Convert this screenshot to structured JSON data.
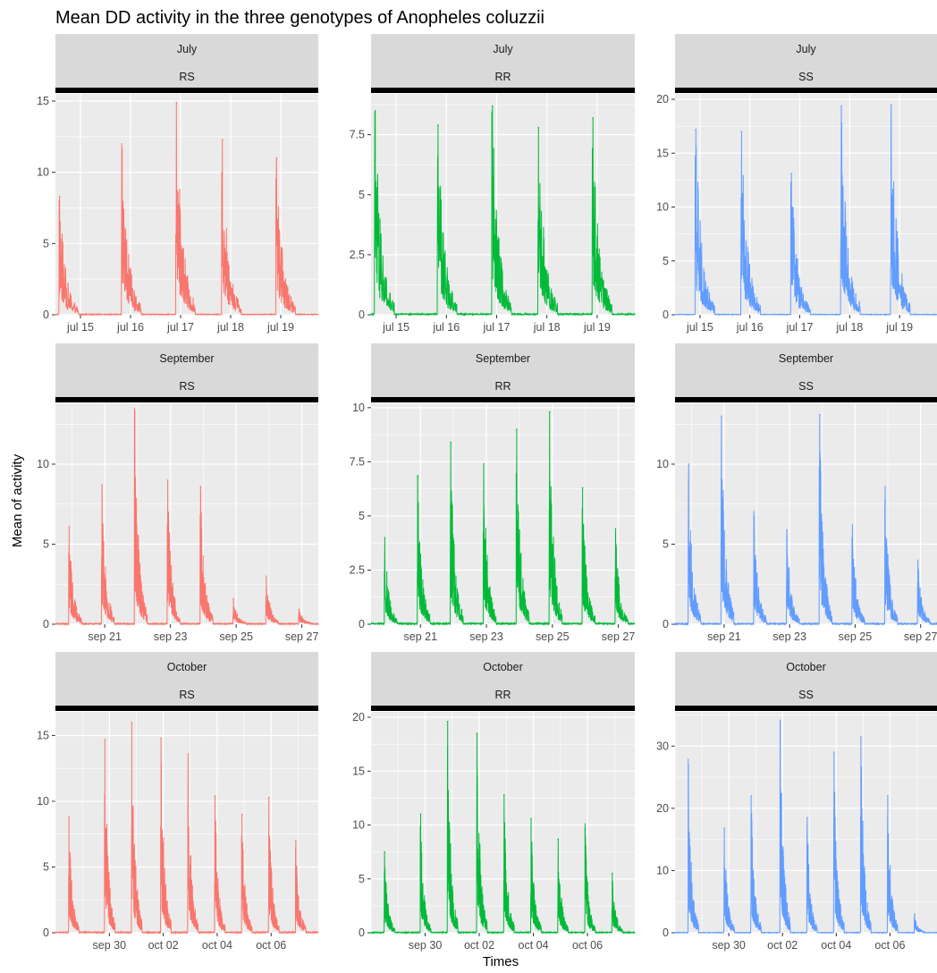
{
  "title": "Mean DD activity in the three genotypes of Anopheles coluzzii",
  "xlabel": "Times",
  "ylabel": "Mean of activity",
  "colors": {
    "RS": "#F8766D",
    "RR": "#00BA38",
    "SS": "#619CFF",
    "panel_bg": "#EBEBEB",
    "strip_bg": "#D9D9D9",
    "grid": "#FFFFFF"
  },
  "chart_data": [
    {
      "type": "line",
      "month": "July",
      "genotype": "RS",
      "ylim": [
        0,
        15.5
      ],
      "yticks": [
        0,
        5,
        10,
        15
      ],
      "x_range": [
        "2018-07-14T12:00",
        "2018-07-19T18:00"
      ],
      "x_ticks": [
        {
          "at": "2018-07-15",
          "label": "jul 15"
        },
        {
          "at": "2018-07-16",
          "label": "jul 16"
        },
        {
          "at": "2018-07-17",
          "label": "jul 17"
        },
        {
          "at": "2018-07-18",
          "label": "jul 18"
        },
        {
          "at": "2018-07-19",
          "label": "jul 19"
        }
      ],
      "peaks": [
        {
          "t": "2018-07-14T14:00",
          "v": 8.3
        },
        {
          "t": "2018-07-15T20:00",
          "v": 11.6
        },
        {
          "t": "2018-07-16T22:00",
          "v": 14.9
        },
        {
          "t": "2018-07-17T20:00",
          "v": 12.3
        },
        {
          "t": "2018-07-18T22:00",
          "v": 11.0
        }
      ]
    },
    {
      "type": "line",
      "month": "July",
      "genotype": "RR",
      "ylim": [
        0,
        9.2
      ],
      "yticks": [
        0,
        2.5,
        5,
        7.5
      ],
      "x_range": [
        "2018-07-14T12:00",
        "2018-07-19T18:00"
      ],
      "x_ticks": [
        {
          "at": "2018-07-15",
          "label": "jul 15"
        },
        {
          "at": "2018-07-16",
          "label": "jul 16"
        },
        {
          "at": "2018-07-17",
          "label": "jul 17"
        },
        {
          "at": "2018-07-18",
          "label": "jul 18"
        },
        {
          "at": "2018-07-19",
          "label": "jul 19"
        }
      ],
      "peaks": [
        {
          "t": "2018-07-14T14:00",
          "v": 8.5
        },
        {
          "t": "2018-07-15T20:00",
          "v": 7.9
        },
        {
          "t": "2018-07-16T22:00",
          "v": 8.7
        },
        {
          "t": "2018-07-17T20:00",
          "v": 7.8
        },
        {
          "t": "2018-07-18T22:00",
          "v": 8.2
        }
      ]
    },
    {
      "type": "line",
      "month": "July",
      "genotype": "SS",
      "ylim": [
        0,
        20.5
      ],
      "yticks": [
        0,
        5,
        10,
        15,
        20
      ],
      "x_range": [
        "2018-07-14T12:00",
        "2018-07-19T18:00"
      ],
      "x_ticks": [
        {
          "at": "2018-07-15",
          "label": "jul 15"
        },
        {
          "at": "2018-07-16",
          "label": "jul 16"
        },
        {
          "at": "2018-07-17",
          "label": "jul 17"
        },
        {
          "at": "2018-07-18",
          "label": "jul 18"
        },
        {
          "at": "2018-07-19",
          "label": "jul 19"
        }
      ],
      "peaks": [
        {
          "t": "2018-07-14T22:00",
          "v": 17.2
        },
        {
          "t": "2018-07-15T20:00",
          "v": 17.0
        },
        {
          "t": "2018-07-16T20:00",
          "v": 13.1
        },
        {
          "t": "2018-07-17T20:00",
          "v": 19.4
        },
        {
          "t": "2018-07-18T20:00",
          "v": 19.5
        }
      ]
    },
    {
      "type": "line",
      "month": "September",
      "genotype": "RS",
      "ylim": [
        0,
        13.8
      ],
      "yticks": [
        0,
        5,
        10
      ],
      "x_range": [
        "2018-09-19T12:00",
        "2018-09-27T12:00"
      ],
      "x_ticks": [
        {
          "at": "2018-09-21",
          "label": "sep 21"
        },
        {
          "at": "2018-09-23",
          "label": "sep 23"
        },
        {
          "at": "2018-09-25",
          "label": "sep 25"
        },
        {
          "at": "2018-09-27",
          "label": "sep 27"
        }
      ],
      "peaks": [
        {
          "t": "2018-09-19T22:00",
          "v": 6.1
        },
        {
          "t": "2018-09-20T22:00",
          "v": 8.7
        },
        {
          "t": "2018-09-21T22:00",
          "v": 13.3
        },
        {
          "t": "2018-09-22T22:00",
          "v": 9.0
        },
        {
          "t": "2018-09-23T22:00",
          "v": 8.6
        },
        {
          "t": "2018-09-24T22:00",
          "v": 1.6
        },
        {
          "t": "2018-09-25T22:00",
          "v": 3.0
        },
        {
          "t": "2018-09-26T22:00",
          "v": 0.9
        }
      ]
    },
    {
      "type": "line",
      "month": "September",
      "genotype": "RR",
      "ylim": [
        0,
        10.2
      ],
      "yticks": [
        0,
        2.5,
        5,
        7.5,
        10
      ],
      "x_range": [
        "2018-09-19T12:00",
        "2018-09-27T12:00"
      ],
      "x_ticks": [
        {
          "at": "2018-09-21",
          "label": "sep 21"
        },
        {
          "at": "2018-09-23",
          "label": "sep 23"
        },
        {
          "at": "2018-09-25",
          "label": "sep 25"
        },
        {
          "at": "2018-09-27",
          "label": "sep 27"
        }
      ],
      "peaks": [
        {
          "t": "2018-09-19T22:00",
          "v": 4.0
        },
        {
          "t": "2018-09-20T22:00",
          "v": 6.8
        },
        {
          "t": "2018-09-21T22:00",
          "v": 8.4
        },
        {
          "t": "2018-09-22T22:00",
          "v": 7.4
        },
        {
          "t": "2018-09-23T22:00",
          "v": 9.0
        },
        {
          "t": "2018-09-24T22:00",
          "v": 9.8
        },
        {
          "t": "2018-09-25T22:00",
          "v": 6.3
        },
        {
          "t": "2018-09-26T22:00",
          "v": 4.4
        }
      ]
    },
    {
      "type": "line",
      "month": "September",
      "genotype": "SS",
      "ylim": [
        0,
        13.8
      ],
      "yticks": [
        0,
        5,
        10
      ],
      "x_range": [
        "2018-09-19T12:00",
        "2018-09-27T12:00"
      ],
      "x_ticks": [
        {
          "at": "2018-09-21",
          "label": "sep 21"
        },
        {
          "at": "2018-09-23",
          "label": "sep 23"
        },
        {
          "at": "2018-09-25",
          "label": "sep 25"
        },
        {
          "at": "2018-09-27",
          "label": "sep 27"
        }
      ],
      "peaks": [
        {
          "t": "2018-09-19T22:00",
          "v": 10.0
        },
        {
          "t": "2018-09-20T22:00",
          "v": 13.0
        },
        {
          "t": "2018-09-21T22:00",
          "v": 6.7
        },
        {
          "t": "2018-09-22T22:00",
          "v": 5.9
        },
        {
          "t": "2018-09-23T22:00",
          "v": 13.1
        },
        {
          "t": "2018-09-24T22:00",
          "v": 6.2
        },
        {
          "t": "2018-09-25T22:00",
          "v": 8.6
        },
        {
          "t": "2018-09-26T22:00",
          "v": 4.0
        }
      ]
    },
    {
      "type": "line",
      "month": "October",
      "genotype": "RS",
      "ylim": [
        0,
        16.8
      ],
      "yticks": [
        0,
        5,
        10,
        15
      ],
      "x_range": [
        "2018-09-28T00:00",
        "2018-10-07T18:00"
      ],
      "x_ticks": [
        {
          "at": "2018-09-30",
          "label": "sep 30"
        },
        {
          "at": "2018-10-02",
          "label": "oct 02"
        },
        {
          "at": "2018-10-04",
          "label": "oct 04"
        },
        {
          "at": "2018-10-06",
          "label": "oct 06"
        }
      ],
      "peaks": [
        {
          "t": "2018-09-28T12:00",
          "v": 8.8
        },
        {
          "t": "2018-09-29T20:00",
          "v": 14.7
        },
        {
          "t": "2018-09-30T20:00",
          "v": 16.0
        },
        {
          "t": "2018-10-01T22:00",
          "v": 14.8
        },
        {
          "t": "2018-10-02T22:00",
          "v": 13.6
        },
        {
          "t": "2018-10-03T22:00",
          "v": 10.4
        },
        {
          "t": "2018-10-04T22:00",
          "v": 9.0
        },
        {
          "t": "2018-10-05T22:00",
          "v": 10.3
        },
        {
          "t": "2018-10-06T22:00",
          "v": 7.0
        }
      ]
    },
    {
      "type": "line",
      "month": "October",
      "genotype": "RR",
      "ylim": [
        0,
        20.5
      ],
      "yticks": [
        0,
        5,
        10,
        15,
        20
      ],
      "x_range": [
        "2018-09-28T00:00",
        "2018-10-07T18:00"
      ],
      "x_ticks": [
        {
          "at": "2018-09-30",
          "label": "sep 30"
        },
        {
          "at": "2018-10-02",
          "label": "oct 02"
        },
        {
          "at": "2018-10-04",
          "label": "oct 04"
        },
        {
          "at": "2018-10-06",
          "label": "oct 06"
        }
      ],
      "peaks": [
        {
          "t": "2018-09-28T12:00",
          "v": 7.5
        },
        {
          "t": "2018-09-29T20:00",
          "v": 11.0
        },
        {
          "t": "2018-09-30T20:00",
          "v": 19.6
        },
        {
          "t": "2018-10-01T22:00",
          "v": 18.5
        },
        {
          "t": "2018-10-02T22:00",
          "v": 12.8
        },
        {
          "t": "2018-10-03T22:00",
          "v": 10.6
        },
        {
          "t": "2018-10-04T22:00",
          "v": 8.7
        },
        {
          "t": "2018-10-05T22:00",
          "v": 9.7
        },
        {
          "t": "2018-10-06T22:00",
          "v": 5.5
        }
      ]
    },
    {
      "type": "line",
      "month": "October",
      "genotype": "SS",
      "ylim": [
        0,
        35.5
      ],
      "yticks": [
        0,
        10,
        20,
        30
      ],
      "x_range": [
        "2018-09-28T00:00",
        "2018-10-07T18:00"
      ],
      "x_ticks": [
        {
          "at": "2018-09-30",
          "label": "sep 30"
        },
        {
          "at": "2018-10-02",
          "label": "oct 02"
        },
        {
          "at": "2018-10-04",
          "label": "oct 04"
        },
        {
          "at": "2018-10-06",
          "label": "oct 06"
        }
      ],
      "peaks": [
        {
          "t": "2018-09-28T12:00",
          "v": 26.9
        },
        {
          "t": "2018-09-29T20:00",
          "v": 16.8
        },
        {
          "t": "2018-09-30T20:00",
          "v": 22.0
        },
        {
          "t": "2018-10-01T22:00",
          "v": 34.0
        },
        {
          "t": "2018-10-02T22:00",
          "v": 18.5
        },
        {
          "t": "2018-10-03T22:00",
          "v": 29.0
        },
        {
          "t": "2018-10-04T22:00",
          "v": 31.5
        },
        {
          "t": "2018-10-05T22:00",
          "v": 22.0
        },
        {
          "t": "2018-10-06T22:00",
          "v": 3.0
        }
      ]
    }
  ]
}
